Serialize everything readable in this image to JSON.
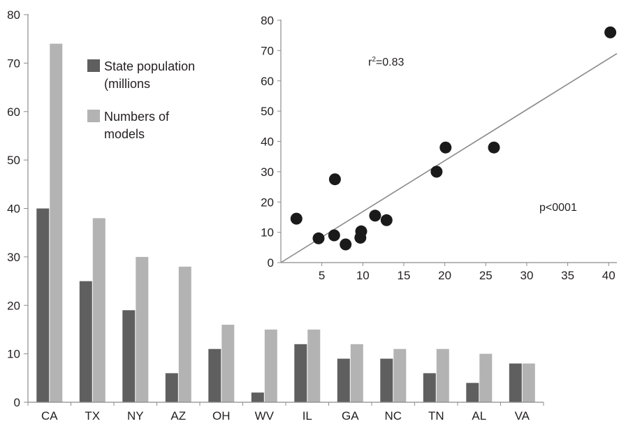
{
  "chart_data": [
    {
      "type": "bar",
      "categories": [
        "CA",
        "TX",
        "NY",
        "AZ",
        "OH",
        "WV",
        "IL",
        "GA",
        "NC",
        "TN",
        "AL",
        "VA"
      ],
      "series": [
        {
          "name": "State population (millions",
          "color": "#5f5f5f",
          "values": [
            40,
            25,
            19,
            6,
            11,
            2,
            12,
            9,
            9,
            6,
            4,
            8
          ]
        },
        {
          "name": "Numbers of models",
          "color": "#b3b3b3",
          "values": [
            74,
            38,
            30,
            28,
            16,
            15,
            15,
            12,
            11,
            11,
            10,
            8
          ]
        }
      ],
      "legend": {
        "position": "top-left",
        "entries": [
          {
            "lines": [
              "State population",
              "(millions"
            ],
            "color": "#5f5f5f"
          },
          {
            "lines": [
              "Numbers of",
              "models"
            ],
            "color": "#b3b3b3"
          }
        ]
      },
      "ylim": [
        0,
        80
      ],
      "yticks": [
        0,
        10,
        20,
        30,
        40,
        50,
        60,
        70,
        80
      ],
      "grid": false
    },
    {
      "type": "scatter",
      "points": [
        {
          "x": 1.9,
          "y": 14.5
        },
        {
          "x": 4.6,
          "y": 8
        },
        {
          "x": 6.5,
          "y": 9
        },
        {
          "x": 6.6,
          "y": 27.5
        },
        {
          "x": 7.9,
          "y": 6
        },
        {
          "x": 9.7,
          "y": 8.2
        },
        {
          "x": 9.8,
          "y": 10.3
        },
        {
          "x": 11.5,
          "y": 15.5
        },
        {
          "x": 12.9,
          "y": 14
        },
        {
          "x": 19.0,
          "y": 30
        },
        {
          "x": 20.1,
          "y": 38
        },
        {
          "x": 26.0,
          "y": 38
        },
        {
          "x": 40.2,
          "y": 76
        }
      ],
      "trendline": {
        "x": [
          0,
          41
        ],
        "y": [
          0,
          69
        ]
      },
      "xlim": [
        0,
        41
      ],
      "ylim": [
        0,
        80
      ],
      "xticks": [
        5,
        10,
        15,
        20,
        25,
        30,
        35,
        40
      ],
      "yticks": [
        0,
        10,
        20,
        30,
        40,
        50,
        60,
        70,
        80
      ],
      "annotations": {
        "r2_prefix": "r",
        "r2_sup": "2",
        "r2_value": "=0.83",
        "p_value": "p<0001"
      },
      "colors": {
        "point": "#1a1a1a",
        "line": "#8a8a8a"
      },
      "grid": false
    }
  ]
}
